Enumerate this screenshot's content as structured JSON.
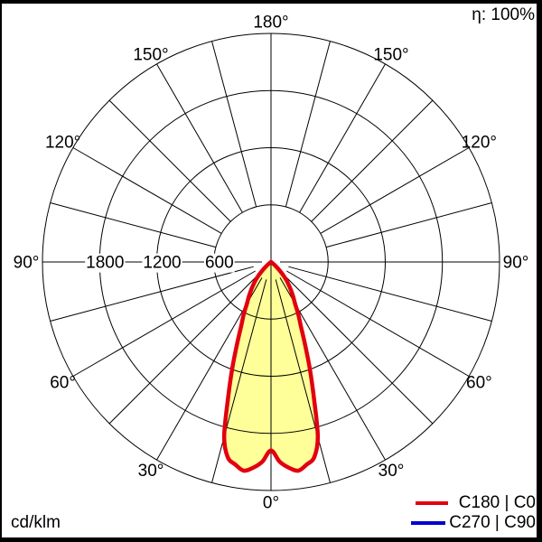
{
  "header": {
    "efficiency": "η: 100%"
  },
  "footer": {
    "unit": "cd/klm"
  },
  "legend": {
    "items": [
      {
        "label": "C180 | C0",
        "color": "#E2000F"
      },
      {
        "label": "C270 | C90",
        "color": "#0000CD"
      }
    ]
  },
  "chart_data": {
    "type": "polar",
    "subtype": "luminous-intensity-distribution",
    "unit": "cd/klm",
    "efficiency_percent": 100,
    "angle_label_texts": [
      "0°",
      "30°",
      "60°",
      "90°",
      "120°",
      "150°",
      "180°"
    ],
    "angle_label_step_deg": 30,
    "grid_spoke_step_deg": 15,
    "radial_circles_cd_klm": [
      600,
      1200,
      1800,
      2400
    ],
    "radial_axis_labels": [
      {
        "value": 1800,
        "text": "1800"
      },
      {
        "value": 1200,
        "text": "1200"
      },
      {
        "value": 600,
        "text": "600"
      }
    ],
    "r_max_cd_klm": 2400,
    "grid_color": "#000000",
    "series": [
      {
        "name": "C180 | C0",
        "color": "#E2000F",
        "fill_color": "#FFFF99",
        "symmetric": true,
        "angles_deg": [
          0,
          2.5,
          5,
          7.5,
          10,
          12.5,
          15,
          17.5,
          20,
          22.5,
          25,
          27.5,
          30,
          32.5,
          35,
          37.5,
          40,
          42.5,
          45,
          47.5,
          50,
          52.5,
          55,
          57.5
        ],
        "values_cd_klm": [
          1980,
          2100,
          2170,
          2210,
          2160,
          2100,
          1900,
          1500,
          1190,
          930,
          740,
          620,
          505,
          435,
          370,
          310,
          255,
          195,
          135,
          85,
          45,
          20,
          5,
          0
        ]
      },
      {
        "name": "C270 | C90",
        "color": "#0000CD",
        "symmetric": true,
        "hidden_behind_c0": true,
        "angles_deg": [
          0,
          2.5,
          5,
          7.5,
          10,
          12.5,
          15,
          17.5,
          20,
          22.5,
          25,
          27.5,
          30,
          32.5,
          35,
          37.5,
          40,
          42.5,
          45,
          47.5,
          50,
          52.5,
          55,
          57.5
        ],
        "values_cd_klm": [
          1980,
          2100,
          2170,
          2210,
          2160,
          2100,
          1900,
          1500,
          1190,
          930,
          740,
          620,
          505,
          435,
          370,
          310,
          255,
          195,
          135,
          85,
          45,
          20,
          5,
          0
        ]
      }
    ],
    "legend_position": "bottom-right"
  }
}
